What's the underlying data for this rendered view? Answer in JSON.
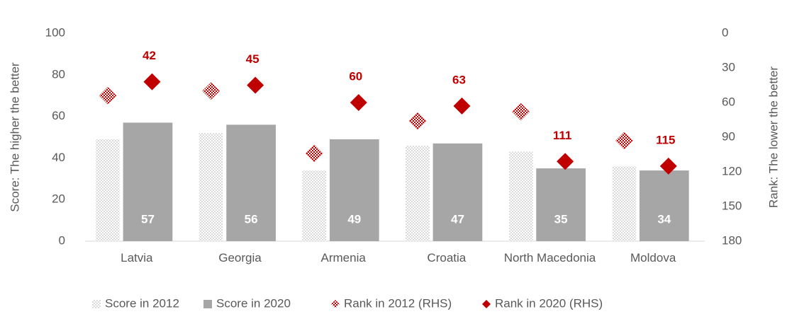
{
  "chart_data": {
    "type": "bar_rank",
    "y_label": "Score: The higher the better",
    "y2_label": "Rank: The lower the better",
    "categories": [
      "Latvia",
      "Georgia",
      "Armenia",
      "Croatia",
      "North Macedonia",
      "Moldova"
    ],
    "series": [
      {
        "name": "Score in 2012",
        "color": "#bfbfbf",
        "style": "dotted",
        "values": [
          49,
          52,
          34,
          46,
          43,
          36
        ]
      },
      {
        "name": "Score in 2020",
        "color": "#a6a6a6",
        "values": [
          57,
          56,
          49,
          47,
          35,
          34
        ],
        "data_labels": true
      },
      {
        "name": "Rank in 2012 (RHS)",
        "color": "#c00000",
        "style": "checkered",
        "axis": "y2",
        "values": [
          54,
          50,
          104,
          76,
          68,
          93
        ]
      },
      {
        "name": "Rank in 2020 (RHS)",
        "color": "#c00000",
        "axis": "y2",
        "values": [
          42,
          45,
          60,
          63,
          111,
          115
        ],
        "data_labels": true
      }
    ],
    "ylim": [
      0,
      100
    ],
    "yticks": [
      0,
      20,
      40,
      60,
      80,
      100
    ],
    "y2lim": [
      0,
      180
    ],
    "y2ticks": [
      0,
      30,
      60,
      90,
      120,
      150,
      180
    ],
    "y2_reversed": true,
    "grid": false,
    "legend": "bottom"
  }
}
